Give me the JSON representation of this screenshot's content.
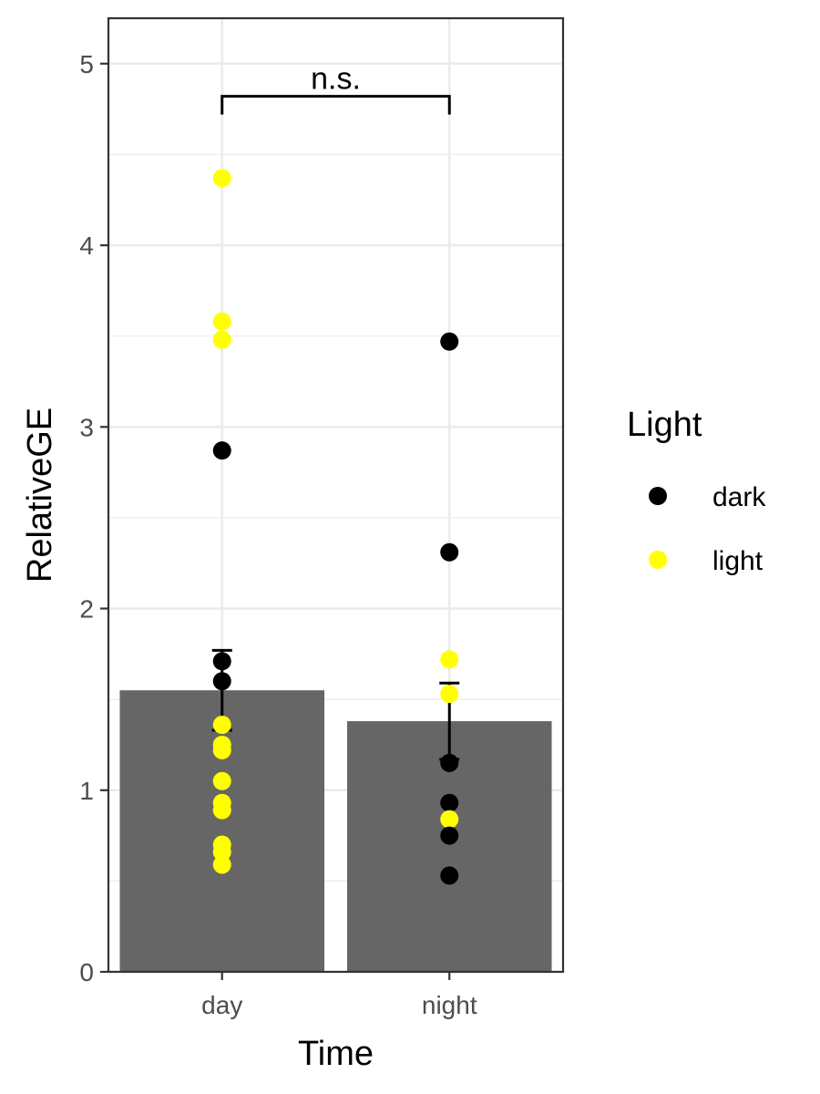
{
  "chart_data": {
    "type": "bar",
    "categories": [
      "day",
      "night"
    ],
    "bars": [
      {
        "category": "day",
        "mean": 1.55,
        "error_low": 1.33,
        "error_high": 1.77
      },
      {
        "category": "night",
        "mean": 1.38,
        "error_low": 1.17,
        "error_high": 1.59
      }
    ],
    "points": [
      {
        "category": "day",
        "light": "light",
        "value": 4.37
      },
      {
        "category": "day",
        "light": "light",
        "value": 3.58
      },
      {
        "category": "day",
        "light": "light",
        "value": 3.48
      },
      {
        "category": "day",
        "light": "dark",
        "value": 2.87
      },
      {
        "category": "day",
        "light": "dark",
        "value": 1.71
      },
      {
        "category": "day",
        "light": "dark",
        "value": 1.6
      },
      {
        "category": "day",
        "light": "light",
        "value": 1.36
      },
      {
        "category": "day",
        "light": "light",
        "value": 1.25
      },
      {
        "category": "day",
        "light": "light",
        "value": 1.22
      },
      {
        "category": "day",
        "light": "light",
        "value": 1.05
      },
      {
        "category": "day",
        "light": "light",
        "value": 0.93
      },
      {
        "category": "day",
        "light": "light",
        "value": 0.89
      },
      {
        "category": "day",
        "light": "light",
        "value": 0.7
      },
      {
        "category": "day",
        "light": "light",
        "value": 0.66
      },
      {
        "category": "day",
        "light": "light",
        "value": 0.59
      },
      {
        "category": "night",
        "light": "dark",
        "value": 3.47
      },
      {
        "category": "night",
        "light": "dark",
        "value": 2.31
      },
      {
        "category": "night",
        "light": "light",
        "value": 1.72
      },
      {
        "category": "night",
        "light": "light",
        "value": 1.53
      },
      {
        "category": "night",
        "light": "dark",
        "value": 1.15
      },
      {
        "category": "night",
        "light": "dark",
        "value": 0.93
      },
      {
        "category": "night",
        "light": "light",
        "value": 0.84
      },
      {
        "category": "night",
        "light": "dark",
        "value": 0.75
      },
      {
        "category": "night",
        "light": "dark",
        "value": 0.53
      }
    ],
    "xlabel": "Time",
    "ylabel": "RelativeGE",
    "ylim": [
      0,
      5.25
    ],
    "yticks": [
      0,
      1,
      2,
      3,
      4,
      5
    ],
    "grid": true,
    "legend": {
      "title": "Light",
      "position": "right",
      "entries": [
        {
          "label": "dark",
          "color": "#000000"
        },
        {
          "label": "light",
          "color": "#ffff00"
        }
      ]
    },
    "annotation": {
      "text": "n.s.",
      "from": "day",
      "to": "night",
      "y": 4.82,
      "tick_bottom": 4.72
    },
    "colors": {
      "bar": "#666666",
      "error_bar": "#000000",
      "panel_border": "#333333",
      "grid": "#ebebeb",
      "background": "#ffffff"
    }
  }
}
